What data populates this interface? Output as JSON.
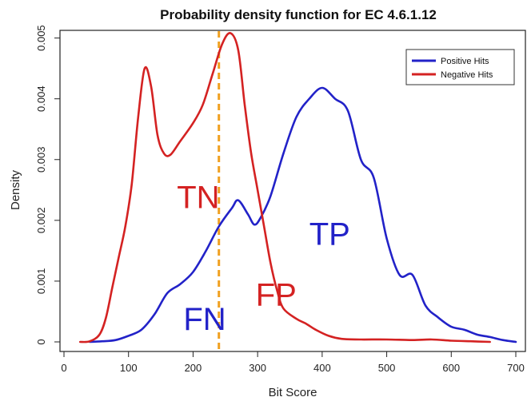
{
  "chart_data": {
    "type": "line",
    "title": "Probability density function for EC 4.6.1.12",
    "xlabel": "Bit Score",
    "ylabel": "Density",
    "xlim": [
      0,
      700
    ],
    "ylim": [
      0,
      0.0051
    ],
    "xticks": [
      0,
      100,
      200,
      300,
      400,
      500,
      600,
      700
    ],
    "yticks": [
      0,
      0.001,
      0.002,
      0.003,
      0.004,
      0.005
    ],
    "xtick_labels": [
      "0",
      "100",
      "200",
      "300",
      "400",
      "500",
      "600",
      "700"
    ],
    "ytick_labels": [
      "0",
      "0.001",
      "0.002",
      "0.003",
      "0.004",
      "0.005"
    ],
    "threshold": {
      "x": 240,
      "color": "#f0a020",
      "style": "dashed"
    },
    "legend": {
      "placement": "top-right"
    },
    "series": [
      {
        "name": "Positive Hits",
        "color": "#2222c8",
        "points": [
          [
            40,
            0
          ],
          [
            60,
            1e-05
          ],
          [
            80,
            3e-05
          ],
          [
            100,
            0.0001
          ],
          [
            120,
            0.0002
          ],
          [
            140,
            0.00045
          ],
          [
            160,
            0.0008
          ],
          [
            180,
            0.00095
          ],
          [
            200,
            0.00115
          ],
          [
            220,
            0.0015
          ],
          [
            240,
            0.0019
          ],
          [
            260,
            0.0022
          ],
          [
            270,
            0.00233
          ],
          [
            285,
            0.0021
          ],
          [
            295,
            0.00193
          ],
          [
            305,
            0.00205
          ],
          [
            320,
            0.0024
          ],
          [
            340,
            0.0031
          ],
          [
            360,
            0.0037
          ],
          [
            380,
            0.004
          ],
          [
            400,
            0.00418
          ],
          [
            420,
            0.004
          ],
          [
            440,
            0.0038
          ],
          [
            460,
            0.003
          ],
          [
            480,
            0.0027
          ],
          [
            500,
            0.0017
          ],
          [
            520,
            0.0011
          ],
          [
            540,
            0.0011
          ],
          [
            560,
            0.0006
          ],
          [
            580,
            0.0004
          ],
          [
            600,
            0.00025
          ],
          [
            620,
            0.0002
          ],
          [
            640,
            0.00012
          ],
          [
            660,
            8e-05
          ],
          [
            680,
            3e-05
          ],
          [
            700,
            0
          ]
        ]
      },
      {
        "name": "Negative Hits",
        "color": "#d42222",
        "points": [
          [
            25,
            0
          ],
          [
            40,
            1e-05
          ],
          [
            55,
            0.00012
          ],
          [
            65,
            0.0004
          ],
          [
            75,
            0.0009
          ],
          [
            85,
            0.0014
          ],
          [
            95,
            0.0019
          ],
          [
            105,
            0.0026
          ],
          [
            115,
            0.0037
          ],
          [
            125,
            0.0045
          ],
          [
            135,
            0.0042
          ],
          [
            145,
            0.0034
          ],
          [
            155,
            0.0031
          ],
          [
            165,
            0.00308
          ],
          [
            180,
            0.0033
          ],
          [
            200,
            0.0036
          ],
          [
            215,
            0.0039
          ],
          [
            230,
            0.0044
          ],
          [
            245,
            0.0049
          ],
          [
            258,
            0.00508
          ],
          [
            270,
            0.0048
          ],
          [
            280,
            0.0039
          ],
          [
            290,
            0.0031
          ],
          [
            300,
            0.0025
          ],
          [
            310,
            0.0019
          ],
          [
            320,
            0.0013
          ],
          [
            330,
            0.00085
          ],
          [
            340,
            0.00055
          ],
          [
            360,
            0.00038
          ],
          [
            375,
            0.0003
          ],
          [
            390,
            0.0002
          ],
          [
            410,
            0.0001
          ],
          [
            430,
            5e-05
          ],
          [
            460,
            4e-05
          ],
          [
            500,
            4e-05
          ],
          [
            540,
            3e-05
          ],
          [
            570,
            4e-05
          ],
          [
            600,
            2e-05
          ],
          [
            630,
            1e-05
          ],
          [
            660,
            0
          ]
        ]
      }
    ],
    "annotations": [
      {
        "text": "TN",
        "x": 175,
        "y": 0.0022,
        "color": "#d42222"
      },
      {
        "text": "FP",
        "x": 297,
        "y": 0.0006,
        "color": "#d42222"
      },
      {
        "text": "FN",
        "x": 185,
        "y": 0.0002,
        "color": "#2222c8"
      },
      {
        "text": "TP",
        "x": 380,
        "y": 0.0016,
        "color": "#2222c8"
      }
    ]
  }
}
